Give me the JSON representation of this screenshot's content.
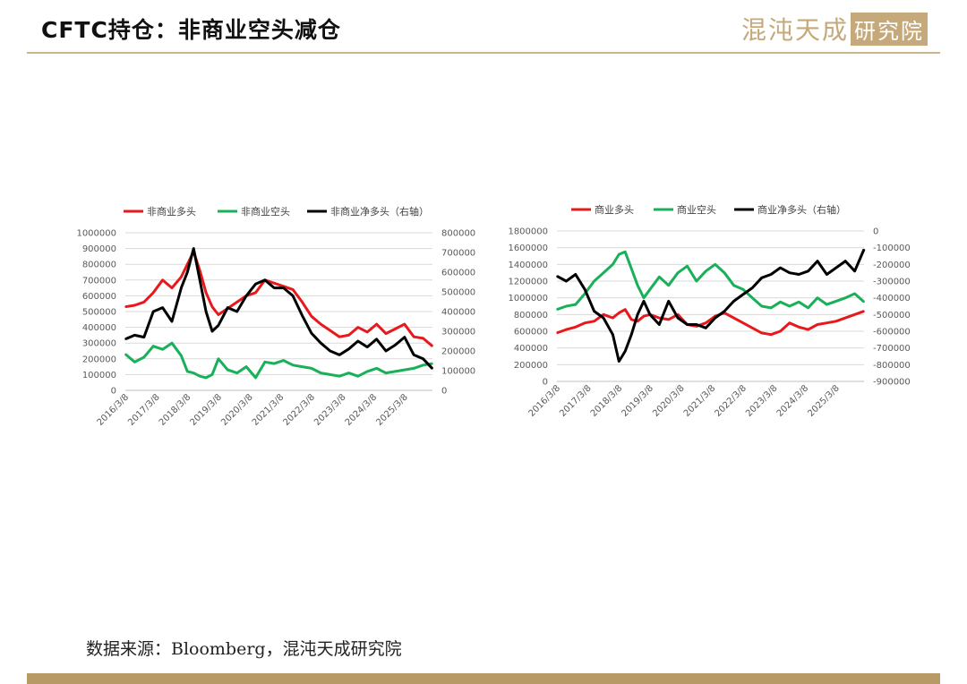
{
  "header": {
    "title": "CFTC持仓：非商业空头减仓",
    "logo_text": "混沌天成",
    "logo_box": "研究院"
  },
  "footer": {
    "source": "数据来源：Bloomberg，混沌天成研究院"
  },
  "colors": {
    "red": "#e8191c",
    "green": "#1ab05a",
    "black": "#000000",
    "accent": "#c5a97a"
  },
  "chart_data": [
    {
      "type": "line",
      "x_ticks": [
        "2016/3/8",
        "2017/3/8",
        "2018/3/8",
        "2019/3/8",
        "2020/3/8",
        "2021/3/8",
        "2022/3/8",
        "2023/3/8",
        "2024/3/8",
        "2025/3/8"
      ],
      "x_range": [
        2016.0,
        2025.9
      ],
      "y_left": {
        "ticks": [
          "0",
          "100000",
          "200000",
          "300000",
          "400000",
          "500000",
          "600000",
          "700000",
          "800000",
          "900000",
          "1000000"
        ],
        "ylim": [
          0,
          1000000
        ]
      },
      "y_right": {
        "ticks": [
          "0",
          "100000",
          "200000",
          "300000",
          "400000",
          "500000",
          "600000",
          "700000",
          "800000"
        ],
        "ylim": [
          0,
          800000
        ]
      },
      "series": [
        {
          "name": "非商业多头",
          "color": "#e8191c",
          "axis": "left",
          "x": [
            2016.0,
            2016.3,
            2016.6,
            2016.9,
            2017.2,
            2017.5,
            2017.8,
            2018.0,
            2018.2,
            2018.4,
            2018.6,
            2018.8,
            2019.0,
            2019.3,
            2019.6,
            2019.9,
            2020.2,
            2020.5,
            2020.8,
            2021.1,
            2021.4,
            2021.7,
            2022.0,
            2022.3,
            2022.6,
            2022.9,
            2023.2,
            2023.5,
            2023.8,
            2024.1,
            2024.4,
            2024.7,
            2025.0,
            2025.3,
            2025.6,
            2025.9
          ],
          "values": [
            530000,
            540000,
            560000,
            620000,
            700000,
            650000,
            720000,
            800000,
            880000,
            760000,
            620000,
            530000,
            480000,
            520000,
            560000,
            600000,
            620000,
            700000,
            680000,
            660000,
            640000,
            560000,
            470000,
            420000,
            380000,
            340000,
            350000,
            400000,
            370000,
            420000,
            360000,
            390000,
            420000,
            340000,
            330000,
            280000
          ]
        },
        {
          "name": "非商业空头",
          "color": "#1ab05a",
          "axis": "left",
          "x": [
            2016.0,
            2016.3,
            2016.6,
            2016.9,
            2017.2,
            2017.5,
            2017.8,
            2018.0,
            2018.2,
            2018.4,
            2018.6,
            2018.8,
            2019.0,
            2019.3,
            2019.6,
            2019.9,
            2020.2,
            2020.5,
            2020.8,
            2021.1,
            2021.4,
            2021.7,
            2022.0,
            2022.3,
            2022.6,
            2022.9,
            2023.2,
            2023.5,
            2023.8,
            2024.1,
            2024.4,
            2024.7,
            2025.0,
            2025.3,
            2025.6,
            2025.9
          ],
          "values": [
            230000,
            180000,
            210000,
            280000,
            260000,
            300000,
            220000,
            120000,
            110000,
            90000,
            80000,
            100000,
            200000,
            130000,
            110000,
            150000,
            80000,
            180000,
            170000,
            190000,
            160000,
            150000,
            140000,
            110000,
            100000,
            90000,
            110000,
            90000,
            120000,
            140000,
            110000,
            120000,
            130000,
            140000,
            160000,
            170000
          ]
        },
        {
          "name": "非商业净多头（右轴）",
          "color": "#000000",
          "axis": "right",
          "x": [
            2016.0,
            2016.3,
            2016.6,
            2016.9,
            2017.2,
            2017.5,
            2017.8,
            2018.0,
            2018.2,
            2018.4,
            2018.6,
            2018.8,
            2019.0,
            2019.3,
            2019.6,
            2019.9,
            2020.2,
            2020.5,
            2020.8,
            2021.1,
            2021.4,
            2021.7,
            2022.0,
            2022.3,
            2022.6,
            2022.9,
            2023.2,
            2023.5,
            2023.8,
            2024.1,
            2024.4,
            2024.7,
            2025.0,
            2025.3,
            2025.6,
            2025.9
          ],
          "values": [
            260000,
            280000,
            270000,
            400000,
            420000,
            350000,
            520000,
            600000,
            720000,
            560000,
            400000,
            300000,
            330000,
            420000,
            400000,
            480000,
            540000,
            560000,
            520000,
            520000,
            480000,
            380000,
            290000,
            240000,
            200000,
            180000,
            210000,
            250000,
            220000,
            260000,
            200000,
            230000,
            270000,
            180000,
            160000,
            110000
          ]
        }
      ]
    },
    {
      "type": "line",
      "x_ticks": [
        "2016/3/8",
        "2017/3/8",
        "2018/3/8",
        "2019/3/8",
        "2020/3/8",
        "2021/3/8",
        "2022/3/8",
        "2023/3/8",
        "2024/3/8",
        "2025/3/8"
      ],
      "x_range": [
        2016.0,
        2025.9
      ],
      "y_left": {
        "ticks": [
          "0",
          "200000",
          "400000",
          "600000",
          "800000",
          "1000000",
          "1200000",
          "1400000",
          "1600000",
          "1800000"
        ],
        "ylim": [
          0,
          1800000
        ]
      },
      "y_right": {
        "ticks": [
          "-900000",
          "-800000",
          "-700000",
          "-600000",
          "-500000",
          "-400000",
          "-300000",
          "-200000",
          "-100000",
          "0"
        ],
        "ylim": [
          -900000,
          0
        ]
      },
      "series": [
        {
          "name": "商业多头",
          "color": "#e8191c",
          "axis": "left",
          "x": [
            2016.0,
            2016.3,
            2016.6,
            2016.9,
            2017.2,
            2017.5,
            2017.8,
            2018.0,
            2018.2,
            2018.4,
            2018.6,
            2018.8,
            2019.0,
            2019.3,
            2019.6,
            2019.9,
            2020.2,
            2020.5,
            2020.8,
            2021.1,
            2021.4,
            2021.7,
            2022.0,
            2022.3,
            2022.6,
            2022.9,
            2023.2,
            2023.5,
            2023.8,
            2024.1,
            2024.4,
            2024.7,
            2025.0,
            2025.3,
            2025.6,
            2025.9
          ],
          "values": [
            580000,
            620000,
            650000,
            700000,
            720000,
            800000,
            760000,
            820000,
            860000,
            740000,
            720000,
            780000,
            800000,
            760000,
            740000,
            800000,
            680000,
            660000,
            700000,
            780000,
            820000,
            760000,
            700000,
            640000,
            580000,
            560000,
            600000,
            700000,
            650000,
            620000,
            680000,
            700000,
            720000,
            760000,
            800000,
            840000
          ]
        },
        {
          "name": "商业空头",
          "color": "#1ab05a",
          "axis": "left",
          "x": [
            2016.0,
            2016.3,
            2016.6,
            2016.9,
            2017.2,
            2017.5,
            2017.8,
            2018.0,
            2018.2,
            2018.4,
            2018.6,
            2018.8,
            2019.0,
            2019.3,
            2019.6,
            2019.9,
            2020.2,
            2020.5,
            2020.8,
            2021.1,
            2021.4,
            2021.7,
            2022.0,
            2022.3,
            2022.6,
            2022.9,
            2023.2,
            2023.5,
            2023.8,
            2024.1,
            2024.4,
            2024.7,
            2025.0,
            2025.3,
            2025.6,
            2025.9
          ],
          "values": [
            860000,
            900000,
            920000,
            1050000,
            1200000,
            1300000,
            1400000,
            1520000,
            1550000,
            1350000,
            1150000,
            1000000,
            1100000,
            1250000,
            1150000,
            1300000,
            1380000,
            1200000,
            1320000,
            1400000,
            1300000,
            1150000,
            1100000,
            1000000,
            900000,
            880000,
            950000,
            900000,
            950000,
            880000,
            1000000,
            920000,
            960000,
            1000000,
            1050000,
            950000
          ]
        },
        {
          "name": "商业净多头（右轴）",
          "color": "#000000",
          "axis": "right",
          "x": [
            2016.0,
            2016.3,
            2016.6,
            2016.9,
            2017.2,
            2017.5,
            2017.8,
            2018.0,
            2018.2,
            2018.4,
            2018.6,
            2018.8,
            2019.0,
            2019.3,
            2019.6,
            2019.9,
            2020.2,
            2020.5,
            2020.8,
            2021.1,
            2021.4,
            2021.7,
            2022.0,
            2022.3,
            2022.6,
            2022.9,
            2023.2,
            2023.5,
            2023.8,
            2024.1,
            2024.4,
            2024.7,
            2025.0,
            2025.3,
            2025.6,
            2025.9
          ],
          "values": [
            -270000,
            -300000,
            -260000,
            -350000,
            -480000,
            -520000,
            -620000,
            -780000,
            -720000,
            -620000,
            -500000,
            -420000,
            -500000,
            -560000,
            -420000,
            -520000,
            -560000,
            -560000,
            -580000,
            -520000,
            -480000,
            -420000,
            -380000,
            -340000,
            -280000,
            -260000,
            -220000,
            -250000,
            -260000,
            -240000,
            -180000,
            -260000,
            -220000,
            -180000,
            -240000,
            -110000
          ]
        }
      ]
    }
  ]
}
